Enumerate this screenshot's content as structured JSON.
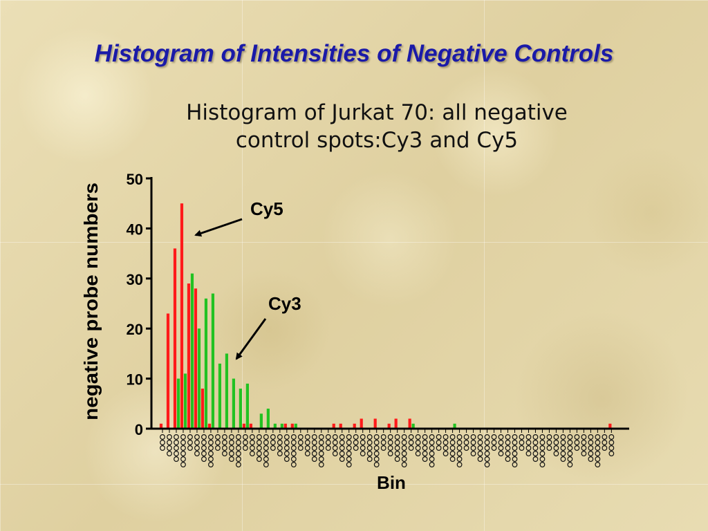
{
  "slide": {
    "title": "Histogram of Intensities of Negative Controls"
  },
  "colors": {
    "title_blue": "#1a1aa8",
    "cy5_series": "#ff1a1a",
    "cy3_series": "#22c222",
    "axis": "#000000"
  },
  "chart_data": {
    "type": "bar",
    "title_line1": "Histogram of Jurkat 70: all negative",
    "title_line2": "control spots:Cy3 and Cy5",
    "xlabel": "Bin",
    "ylabel": "negative probe numbers",
    "ylim": [
      0,
      50
    ],
    "yticks": [
      0,
      10,
      20,
      30,
      40,
      50
    ],
    "bin_count": 66,
    "series": [
      {
        "name": "Cy5",
        "color": "#ff1a1a",
        "points": [
          [
            0,
            1
          ],
          [
            1,
            23
          ],
          [
            2,
            36
          ],
          [
            3,
            45
          ],
          [
            4,
            29
          ],
          [
            5,
            28
          ],
          [
            6,
            8
          ],
          [
            7,
            1
          ],
          [
            12,
            1
          ],
          [
            13,
            1
          ],
          [
            18,
            1
          ],
          [
            19,
            1
          ],
          [
            25,
            1
          ],
          [
            26,
            1
          ],
          [
            28,
            1
          ],
          [
            29,
            2
          ],
          [
            31,
            2
          ],
          [
            33,
            1
          ],
          [
            34,
            2
          ],
          [
            36,
            2
          ],
          [
            65,
            1
          ]
        ]
      },
      {
        "name": "Cy3",
        "color": "#22c222",
        "points": [
          [
            2,
            10
          ],
          [
            3,
            11
          ],
          [
            4,
            31
          ],
          [
            5,
            20
          ],
          [
            6,
            26
          ],
          [
            7,
            27
          ],
          [
            8,
            13
          ],
          [
            9,
            15
          ],
          [
            10,
            10
          ],
          [
            11,
            8
          ],
          [
            12,
            9
          ],
          [
            14,
            3
          ],
          [
            15,
            4
          ],
          [
            16,
            1
          ],
          [
            17,
            1
          ],
          [
            19,
            1
          ],
          [
            36,
            1
          ],
          [
            42,
            1
          ]
        ]
      }
    ],
    "annotations": [
      {
        "text": "Cy5",
        "points_to": "Cy5"
      },
      {
        "text": "Cy3",
        "points_to": "Cy3"
      }
    ]
  }
}
